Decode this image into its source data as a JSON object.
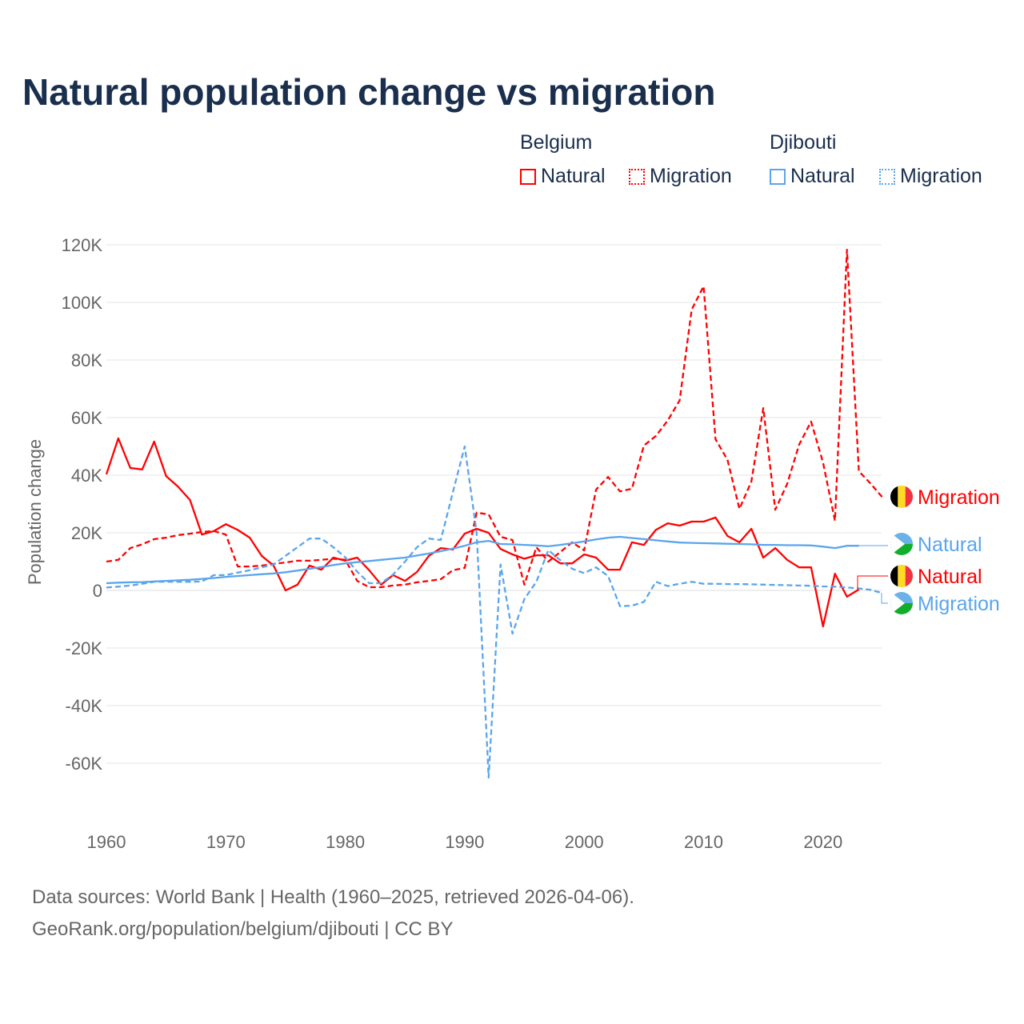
{
  "chart_data": {
    "type": "line",
    "title": "Natural population change vs migration",
    "ylabel": "Population change",
    "ylim": [
      -70000,
      125000
    ],
    "xlim": [
      1960,
      2025
    ],
    "yticks": [
      {
        "v": 120000,
        "l": "120K"
      },
      {
        "v": 100000,
        "l": "100K"
      },
      {
        "v": 80000,
        "l": "80K"
      },
      {
        "v": 60000,
        "l": "60K"
      },
      {
        "v": 40000,
        "l": "40K"
      },
      {
        "v": 20000,
        "l": "20K"
      },
      {
        "v": 0,
        "l": "0"
      },
      {
        "v": -20000,
        "l": "-20K"
      },
      {
        "v": -40000,
        "l": "-40K"
      },
      {
        "v": -60000,
        "l": "-60K"
      }
    ],
    "xticks": [
      1960,
      1970,
      1980,
      1990,
      2000,
      2010,
      2020
    ],
    "legend": {
      "groups": [
        {
          "country": "Belgium",
          "items": [
            "Natural",
            "Migration"
          ]
        },
        {
          "country": "Djibouti",
          "items": [
            "Natural",
            "Migration"
          ]
        }
      ]
    },
    "series": [
      {
        "name": "Belgium Natural",
        "country": "Belgium",
        "kind": "Natural",
        "color": "#ff0000",
        "dash": false,
        "start": 1960,
        "values": [
          40.3,
          52.8,
          42.5,
          42,
          51.7,
          39.7,
          36,
          31.4,
          19.4,
          20.6,
          23,
          21,
          18.3,
          12,
          8.6,
          0,
          2,
          8.6,
          7.2,
          11.4,
          10.3,
          11.4,
          7,
          2,
          5.3,
          3.3,
          6.4,
          12,
          14.7,
          14.2,
          19.7,
          21.4,
          20,
          14.4,
          12.5,
          11,
          12.2,
          12.2,
          9.4,
          9.4,
          12.5,
          11.4,
          7.2,
          7.2,
          16.7,
          15.8,
          21,
          23.3,
          22.5,
          23.9,
          23.9,
          25.3,
          18.9,
          16.7,
          21.4,
          11.4,
          14.7,
          10.6,
          8,
          8,
          -12.5,
          5.8,
          -2.2,
          0.3
        ]
      },
      {
        "name": "Belgium Migration",
        "country": "Belgium",
        "kind": "Migration",
        "color": "#ff0000",
        "dash": true,
        "start": 1960,
        "values": [
          10,
          10.6,
          14.7,
          16,
          17.8,
          18.3,
          19.2,
          19.7,
          20.3,
          20.6,
          19.4,
          8.3,
          8.3,
          8.6,
          9.2,
          9.7,
          10.3,
          10.3,
          10.6,
          11,
          10.6,
          3.3,
          1.1,
          1.1,
          1.7,
          2,
          2.8,
          3.3,
          3.9,
          7,
          7.8,
          27,
          26.4,
          18.6,
          17.5,
          2,
          15,
          10,
          13.3,
          16.7,
          13.9,
          35,
          39.4,
          34.4,
          35.3,
          50.3,
          53.6,
          59,
          66,
          97.5,
          105.6,
          52.5,
          45.3,
          28.3,
          37.8,
          63.3,
          28,
          37,
          50.6,
          58.6,
          44.4,
          24.2,
          118.3,
          41.4,
          37,
          32.2
        ]
      },
      {
        "name": "Djibouti Natural",
        "country": "Djibouti",
        "kind": "Natural",
        "color": "#5aa5ec",
        "dash": false,
        "start": 1960,
        "values": [
          2.5,
          2.7,
          2.8,
          2.9,
          3.1,
          3.3,
          3.5,
          3.7,
          4,
          4.3,
          4.7,
          5,
          5.3,
          5.6,
          5.9,
          6.3,
          6.9,
          7.5,
          8.1,
          8.8,
          9.4,
          9.8,
          10.2,
          10.6,
          11,
          11.4,
          12.1,
          12.8,
          13.6,
          14.5,
          15.5,
          16.7,
          17.2,
          16.1,
          16,
          15.8,
          15.6,
          15.3,
          15.8,
          16.4,
          17,
          17.7,
          18.3,
          18.6,
          18.2,
          17.8,
          17.4,
          17,
          16.6,
          16.5,
          16.4,
          16.3,
          16.2,
          16.1,
          16,
          15.8,
          15.8,
          15.7,
          15.7,
          15.6,
          15.2,
          14.7,
          15.5,
          15.5
        ]
      },
      {
        "name": "Djibouti Migration",
        "country": "Djibouti",
        "kind": "Migration",
        "color": "#5aa5ec",
        "dash": true,
        "start": 1960,
        "values": [
          1,
          1.3,
          1.7,
          2.3,
          3,
          3,
          3,
          3,
          3.1,
          5.3,
          5.3,
          6.2,
          7,
          8,
          9,
          12,
          15,
          18,
          18,
          15,
          11.5,
          6.5,
          2.5,
          2.5,
          5.5,
          10,
          15,
          18,
          17.5,
          34,
          50,
          20,
          -65,
          9,
          -15,
          -3,
          3,
          14,
          10.5,
          7.5,
          6,
          8,
          5,
          -5.5,
          -5.3,
          -4,
          3,
          1.5,
          2.3,
          3,
          2.3,
          2.3,
          2.2,
          2.2,
          2.1,
          2,
          1.9,
          1.8,
          1.7,
          1.6,
          1.4,
          1.3,
          1,
          0.7,
          0.2,
          -1
        ]
      }
    ],
    "end_labels": [
      {
        "text": "Migration",
        "country": "Belgium",
        "color": "#ff0000"
      },
      {
        "text": "Natural",
        "country": "Djibouti",
        "color": "#5aa5ec"
      },
      {
        "text": "Natural",
        "country": "Belgium",
        "color": "#ff0000"
      },
      {
        "text": "Migration",
        "country": "Djibouti",
        "color": "#5aa5ec"
      }
    ]
  },
  "source_line1": "Data sources: World Bank | Health (1960–2025, retrieved 2026-04-06).",
  "source_line2": "GeoRank.org/population/belgium/djibouti | CC BY"
}
